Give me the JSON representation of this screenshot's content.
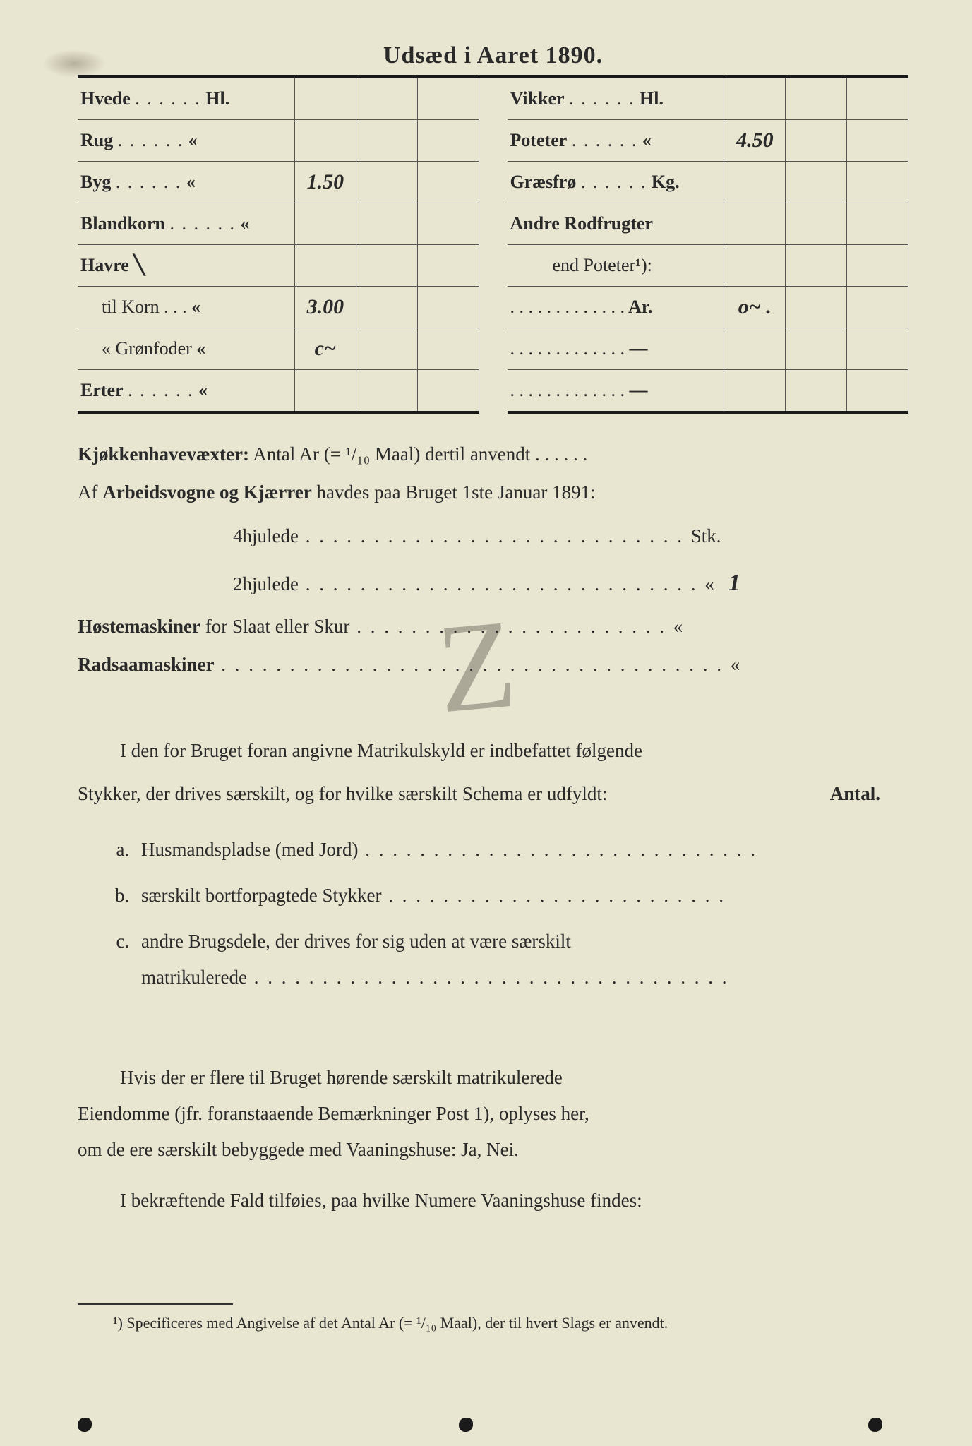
{
  "title": "Udsæd i Aaret 1890.",
  "left_rows": [
    {
      "label": "Hvede",
      "unit": "Hl.",
      "v1": "",
      "v2": "",
      "v3": ""
    },
    {
      "label": "Rug",
      "unit": "«",
      "v1": "",
      "v2": "",
      "v3": ""
    },
    {
      "label": "Byg",
      "unit": "«",
      "v1": "1.50",
      "v2": "",
      "v3": ""
    },
    {
      "label": "Blandkorn",
      "unit": "«",
      "v1": "",
      "v2": "",
      "v3": ""
    },
    {
      "label_html": "Havre ╲",
      "unit": "",
      "v1": "",
      "v2": "",
      "v3": ""
    },
    {
      "label_sub": "til Korn . . .",
      "unit": "«",
      "v1": "3.00",
      "v2": "",
      "v3": ""
    },
    {
      "label_sub": "«  Grønfoder",
      "unit": "«",
      "v1": "c~",
      "v2": "",
      "v3": ""
    },
    {
      "label": "Erter",
      "unit": "«",
      "v1": "",
      "v2": "",
      "v3": ""
    }
  ],
  "right_rows": [
    {
      "label": "Vikker",
      "unit": "Hl.",
      "v1": "",
      "v2": "",
      "v3": ""
    },
    {
      "label": "Poteter",
      "unit": "«",
      "v1": "4.50",
      "v2": "",
      "v3": ""
    },
    {
      "label": "Græsfrø",
      "unit": "Kg.",
      "v1": "",
      "v2": "",
      "v3": ""
    },
    {
      "label_bold": "Andre Rodfrugter",
      "unit": "",
      "v1": "",
      "v2": "",
      "v3": ""
    },
    {
      "label_plain": "end Poteter¹):",
      "unit": "",
      "v1": "",
      "v2": "",
      "v3": ""
    },
    {
      "label_dots": ". . . . . . . . . . . . .",
      "unit": "Ar.",
      "v1": "o~ .",
      "v2": "",
      "v3": ""
    },
    {
      "label_dots": ". . . . . . . . . . . . .",
      "unit": "—",
      "v1": "",
      "v2": "",
      "v3": ""
    },
    {
      "label_dots": ". . . . . . . . . . . . .",
      "unit": "—",
      "v1": "",
      "v2": "",
      "v3": ""
    }
  ],
  "kjokken_label": "Kjøkkenhavevæxter:",
  "kjokken_text": " Antal Ar (= ¹/₁₀ Maal) dertil anvendt . . . . . .",
  "arbeids_pre": "Af ",
  "arbeids_bold": "Arbeidsvogne og Kjærrer",
  "arbeids_post": " havdes paa Bruget 1ste Januar 1891:",
  "fourwheel_label": "4hjulede",
  "fourwheel_unit": "Stk.",
  "fourwheel_val": "",
  "twowheel_label": "2hjulede",
  "twowheel_unit": "«",
  "twowheel_val": "1",
  "hoste_bold": "Høstemaskiner",
  "hoste_post": " for Slaat eller Skur",
  "hoste_unit": "«",
  "rads_bold": "Radsaamaskiner",
  "rads_unit": "«",
  "para1_a": "I den for Bruget foran angivne Matrikulskyld er indbefattet følgende",
  "para1_b": "Stykker, der drives særskilt, og for hvilke særskilt Schema er udfyldt:",
  "antal": "Antal.",
  "item_a": "Husmandspladse (med Jord)",
  "item_b": "særskilt bortforpagtede Stykker",
  "item_c_bold": "andre Brugsdele,",
  "item_c_rest": " der drives for sig uden at være særskilt",
  "item_c_line2": "matrikulerede",
  "lower_a": "Hvis der er flere til Bruget hørende særskilt matrikulerede",
  "lower_b": "Eiendomme (jfr. foranstaaende Bemærkninger Post 1), oplyses her,",
  "lower_c": "om de ere særskilt bebyggede med ",
  "lower_c_bold": "Vaaningshuse:",
  "lower_c_end": " Ja, Nei.",
  "lower_d_a": "I bekræftende Fald tilføies, paa ",
  "lower_d_bold": "hvilke Numere",
  "lower_d_end": " Vaaningshuse findes:",
  "footnote": "¹) Specificeres med Angivelse af det Antal Ar (= ¹/₁₀ Maal), der til hvert Slags er anvendt."
}
